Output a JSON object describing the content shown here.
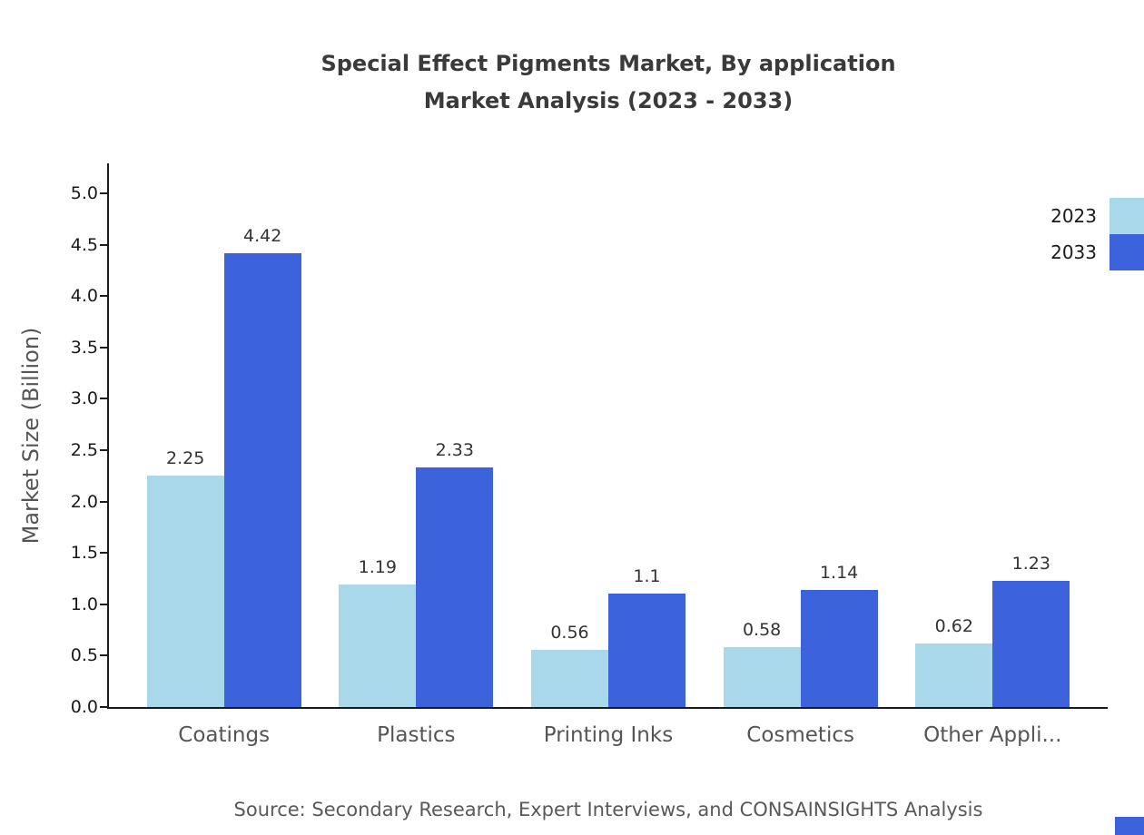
{
  "title": {
    "line1": "Special Effect Pigments Market, By application",
    "line2": "Market Analysis (2023 - 2033)"
  },
  "chart_data": {
    "type": "bar",
    "categories": [
      "Coatings",
      "Plastics",
      "Printing Inks",
      "Cosmetics",
      "Other Appli..."
    ],
    "series": [
      {
        "name": "2023",
        "color": "#A8D8EA",
        "values": [
          2.25,
          1.19,
          0.56,
          0.58,
          0.62
        ]
      },
      {
        "name": "2033",
        "color": "#3D63DC",
        "values": [
          4.42,
          2.33,
          1.1,
          1.14,
          1.23
        ]
      }
    ],
    "title": "Special Effect Pigments Market, By application Market Analysis (2023 - 2033)",
    "xlabel": "",
    "ylabel": "Market Size (Billion)",
    "ylim": [
      0,
      5.0
    ],
    "yticks": [
      0.0,
      0.5,
      1.0,
      1.5,
      2.0,
      2.5,
      3.0,
      3.5,
      4.0,
      4.5,
      5.0
    ],
    "grid": false,
    "legend_position": "top-right"
  },
  "source": "Source: Secondary Research, Expert Interviews, and CONSAINSIGHTS Analysis"
}
